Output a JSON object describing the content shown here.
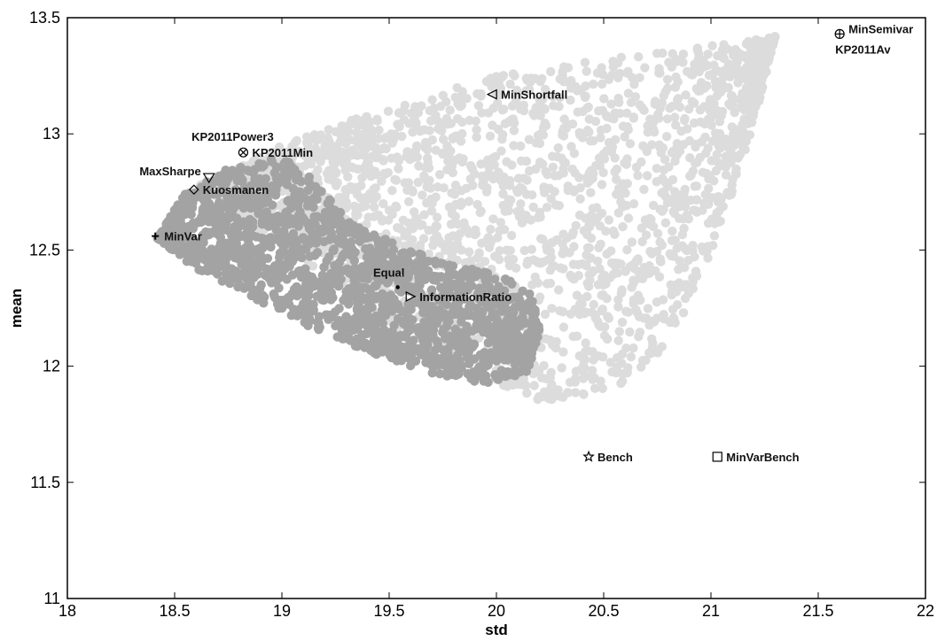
{
  "chart_data": {
    "type": "scatter",
    "title": "",
    "xlabel": "std",
    "ylabel": "mean",
    "xlim": [
      18,
      22
    ],
    "ylim": [
      11,
      13.5
    ],
    "xticks": [
      18,
      18.5,
      19,
      19.5,
      20,
      20.5,
      21,
      21.5,
      22
    ],
    "xtick_labels": [
      "18",
      "18.5",
      "19",
      "19.5",
      "20",
      "20.5",
      "21",
      "21.5",
      "22"
    ],
    "yticks": [
      11,
      11.5,
      12,
      12.5,
      13,
      13.5
    ],
    "ytick_labels": [
      "11",
      "11.5",
      "12",
      "12.5",
      "13",
      "13.5"
    ],
    "grid": false,
    "series": [
      {
        "color": "#dcdcdc",
        "region": {
          "upper": [
            [
              18.62,
              12.78
            ],
            [
              19.0,
              12.95
            ],
            [
              19.5,
              13.12
            ],
            [
              20.0,
              13.25
            ],
            [
              20.5,
              13.32
            ],
            [
              21.0,
              13.38
            ],
            [
              21.3,
              13.42
            ]
          ],
          "lower": [
            [
              18.62,
              12.78
            ],
            [
              19.0,
              12.52
            ],
            [
              19.4,
              12.25
            ],
            [
              19.8,
              12.0
            ],
            [
              20.2,
              11.85
            ],
            [
              20.5,
              11.88
            ],
            [
              20.8,
              12.05
            ],
            [
              21.05,
              12.6
            ],
            [
              21.2,
              13.05
            ],
            [
              21.3,
              13.42
            ]
          ]
        },
        "count": 2400
      },
      {
        "color": "#a3a3a3",
        "region": {
          "upper": [
            [
              18.42,
              12.55
            ],
            [
              18.55,
              12.75
            ],
            [
              18.75,
              12.85
            ],
            [
              19.0,
              12.9
            ],
            [
              19.15,
              12.8
            ],
            [
              19.35,
              12.6
            ],
            [
              19.6,
              12.5
            ],
            [
              19.85,
              12.43
            ],
            [
              20.05,
              12.38
            ],
            [
              20.18,
              12.3
            ],
            [
              20.2,
              12.15
            ]
          ],
          "lower": [
            [
              18.42,
              12.55
            ],
            [
              18.6,
              12.42
            ],
            [
              18.85,
              12.3
            ],
            [
              19.1,
              12.18
            ],
            [
              19.4,
              12.06
            ],
            [
              19.7,
              11.97
            ],
            [
              19.95,
              11.92
            ],
            [
              20.15,
              11.97
            ],
            [
              20.2,
              12.15
            ]
          ]
        },
        "count": 1700
      }
    ],
    "annotations": [
      {
        "label": "MinSemivar",
        "x": 21.6,
        "y": 13.43,
        "marker": "circle-plus",
        "label_position": "right"
      },
      {
        "label": "KP2011Av",
        "x": 21.6,
        "y": 13.43,
        "marker": "none",
        "label_position": "below"
      },
      {
        "label": "MinShortfall",
        "x": 19.98,
        "y": 13.17,
        "marker": "triangle-left",
        "label_position": "right"
      },
      {
        "label": "KP2011Power3",
        "x": 18.82,
        "y": 12.92,
        "marker": "none",
        "label_position": "above"
      },
      {
        "label": "KP2011Min",
        "x": 18.82,
        "y": 12.92,
        "marker": "circle-x",
        "label_position": "right"
      },
      {
        "label": "MaxSharpe",
        "x": 18.66,
        "y": 12.81,
        "marker": "triangle-down",
        "label_position": "left"
      },
      {
        "label": "Kuosmanen",
        "x": 18.59,
        "y": 12.76,
        "marker": "diamond",
        "label_position": "right"
      },
      {
        "label": "MinVar",
        "x": 18.41,
        "y": 12.56,
        "marker": "plus",
        "label_position": "right"
      },
      {
        "label": "Equal",
        "x": 19.54,
        "y": 12.34,
        "marker": "dot",
        "label_position": "above"
      },
      {
        "label": "InformationRatio",
        "x": 19.6,
        "y": 12.3,
        "marker": "triangle-right",
        "label_position": "right"
      },
      {
        "label": "Bench",
        "x": 20.43,
        "y": 11.61,
        "marker": "star",
        "label_position": "right"
      },
      {
        "label": "MinVarBench",
        "x": 21.03,
        "y": 11.61,
        "marker": "square",
        "label_position": "right"
      }
    ]
  }
}
